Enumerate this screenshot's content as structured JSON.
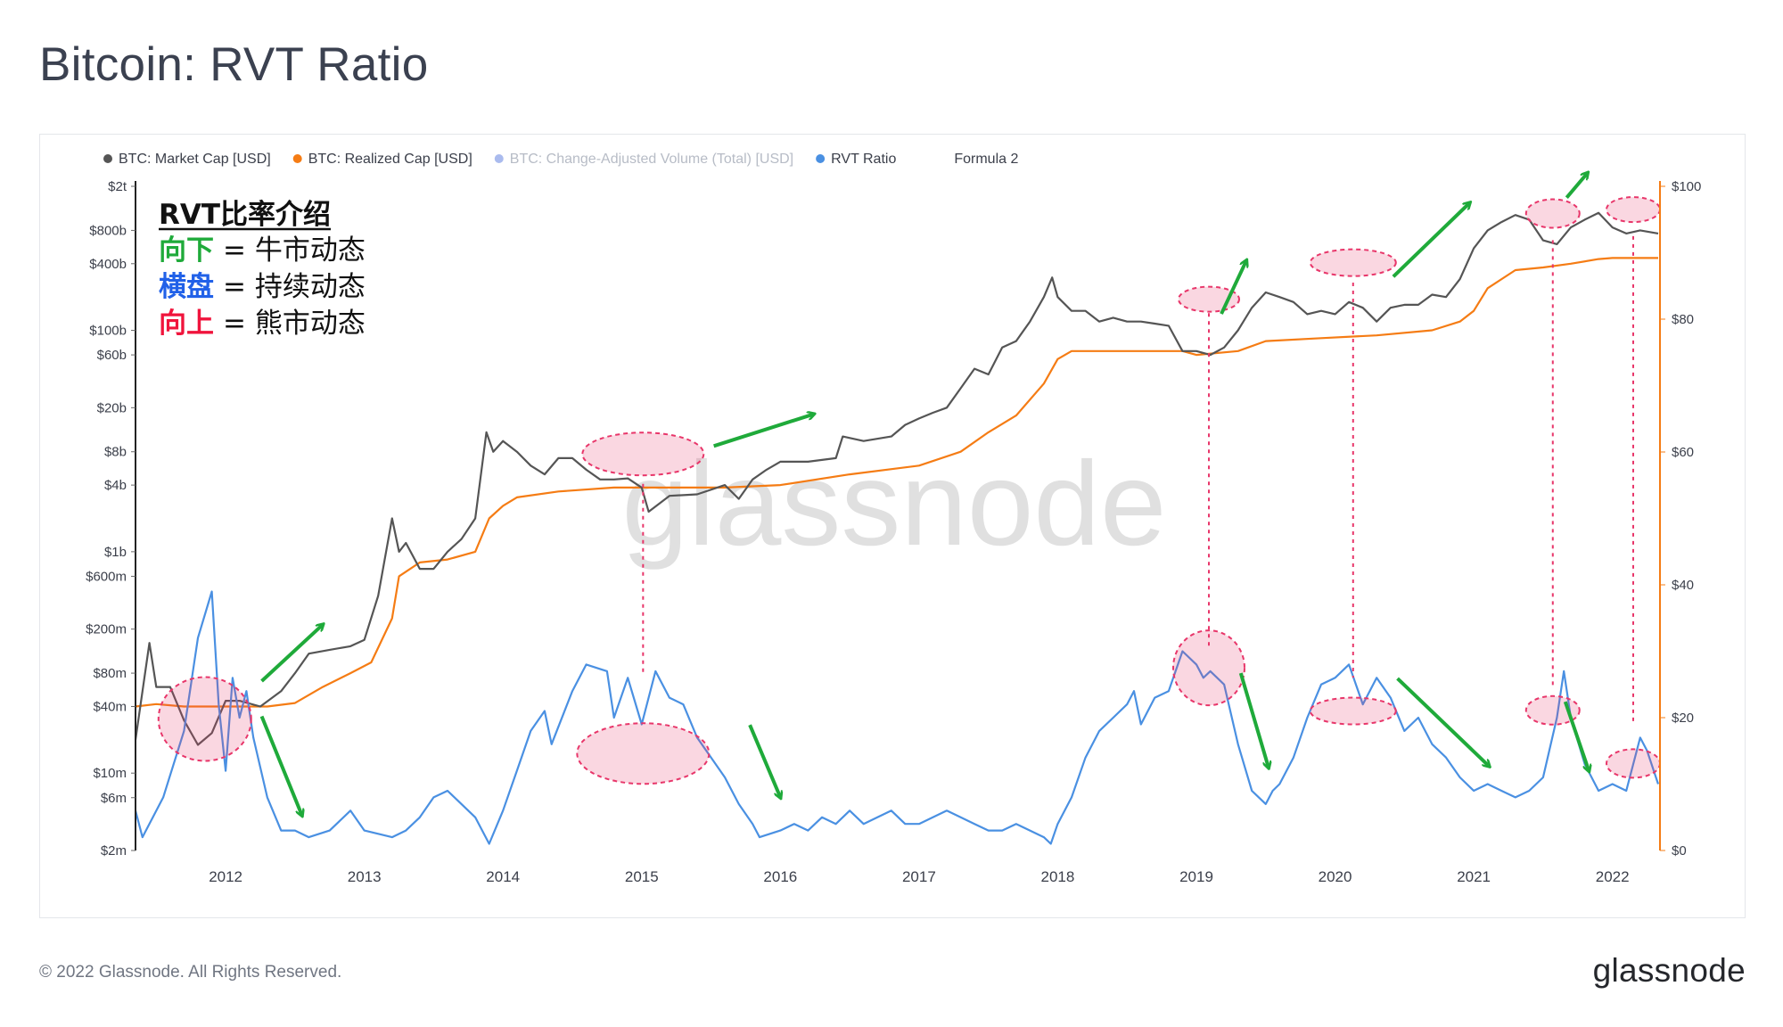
{
  "title": "Bitcoin: RVT Ratio",
  "footer": {
    "copyright": "© 2022 Glassnode. All Rights Reserved.",
    "logo": "glassnode"
  },
  "watermark": "glassnode",
  "legend": [
    {
      "label": "BTC: Market Cap [USD]",
      "color": "#555555",
      "active": true
    },
    {
      "label": "BTC: Realized Cap [USD]",
      "color": "#f57c14",
      "active": true
    },
    {
      "label": "BTC: Change-Adjusted Volume (Total) [USD]",
      "color": "#5577dd",
      "active": false
    },
    {
      "label": "RVT Ratio",
      "color": "#4a90e2",
      "active": true
    },
    {
      "label": "Formula 2",
      "color": null,
      "active": true
    }
  ],
  "annotation_box": {
    "title": "RVT比率介绍",
    "rows": [
      {
        "term": "向下",
        "color": "#1faa3a",
        "meaning": "= 牛市动态"
      },
      {
        "term": "横盘",
        "color": "#2161e8",
        "meaning": "= 持续动态"
      },
      {
        "term": "向上",
        "color": "#f0143c",
        "meaning": "= 熊市动态"
      }
    ]
  },
  "chart_data": {
    "type": "line",
    "x_axis": {
      "ticks": [
        "2012",
        "2013",
        "2014",
        "2015",
        "2016",
        "2017",
        "2018",
        "2019",
        "2020",
        "2021",
        "2022"
      ],
      "range": [
        2011.35,
        2022.33
      ]
    },
    "y_left": {
      "scale": "log",
      "unit": "USD",
      "ticks": [
        "$2t",
        "$800b",
        "$400b",
        "$100b",
        "$60b",
        "$20b",
        "$8b",
        "$4b",
        "$1b",
        "$600m",
        "$200m",
        "$80m",
        "$40m",
        "$10m",
        "$6m",
        "$2m"
      ]
    },
    "y_right": {
      "scale": "linear",
      "range": [
        0,
        100
      ],
      "ticks": [
        "$100",
        "$80",
        "$60",
        "$40",
        "$20",
        "$0"
      ],
      "axis_color": "#f57c14"
    },
    "series": [
      {
        "name": "BTC: Market Cap [USD]",
        "axis": "left",
        "color": "#555555",
        "x": [
          2011.35,
          2011.45,
          2011.5,
          2011.6,
          2011.7,
          2011.8,
          2011.9,
          2012.0,
          2012.1,
          2012.25,
          2012.4,
          2012.5,
          2012.6,
          2012.75,
          2012.9,
          2013.0,
          2013.1,
          2013.2,
          2013.25,
          2013.3,
          2013.4,
          2013.5,
          2013.6,
          2013.7,
          2013.8,
          2013.88,
          2013.93,
          2014.0,
          2014.1,
          2014.2,
          2014.3,
          2014.4,
          2014.5,
          2014.6,
          2014.7,
          2014.8,
          2014.9,
          2015.0,
          2015.05,
          2015.2,
          2015.4,
          2015.6,
          2015.7,
          2015.8,
          2015.9,
          2016.0,
          2016.2,
          2016.4,
          2016.45,
          2016.6,
          2016.8,
          2016.9,
          2017.0,
          2017.1,
          2017.2,
          2017.3,
          2017.4,
          2017.5,
          2017.6,
          2017.7,
          2017.8,
          2017.9,
          2017.96,
          2018.0,
          2018.1,
          2018.2,
          2018.3,
          2018.4,
          2018.5,
          2018.6,
          2018.7,
          2018.8,
          2018.9,
          2019.0,
          2019.1,
          2019.2,
          2019.3,
          2019.4,
          2019.5,
          2019.6,
          2019.7,
          2019.8,
          2019.9,
          2020.0,
          2020.1,
          2020.2,
          2020.3,
          2020.4,
          2020.5,
          2020.6,
          2020.7,
          2020.8,
          2020.9,
          2021.0,
          2021.1,
          2021.2,
          2021.3,
          2021.4,
          2021.5,
          2021.6,
          2021.7,
          2021.8,
          2021.9,
          2022.0,
          2022.1,
          2022.2,
          2022.33
        ],
        "y": [
          20000000.0,
          150000000.0,
          60000000.0,
          60000000.0,
          30000000.0,
          18000000.0,
          23000000.0,
          45000000.0,
          45000000.0,
          40000000.0,
          55000000.0,
          80000000.0,
          120000000.0,
          130000000.0,
          140000000.0,
          160000000.0,
          400000000.0,
          2000000000.0,
          1000000000.0,
          1200000000.0,
          700000000.0,
          700000000.0,
          1000000000.0,
          1300000000.0,
          2000000000.0,
          12000000000.0,
          8000000000.0,
          10000000000.0,
          8000000000.0,
          6000000000.0,
          5000000000.0,
          7000000000.0,
          7000000000.0,
          5500000000.0,
          4500000000.0,
          4500000000.0,
          4600000000.0,
          3800000000.0,
          2300000000.0,
          3200000000.0,
          3300000000.0,
          4000000000.0,
          3000000000.0,
          4500000000.0,
          5500000000.0,
          6500000000.0,
          6500000000.0,
          7000000000.0,
          11000000000.0,
          10000000000.0,
          11000000000.0,
          14000000000.0,
          16000000000.0,
          18000000000.0,
          20000000000.0,
          30000000000.0,
          45000000000.0,
          40000000000.0,
          70000000000.0,
          80000000000.0,
          120000000000.0,
          200000000000.0,
          300000000000.0,
          200000000000.0,
          150000000000.0,
          150000000000.0,
          120000000000.0,
          130000000000.0,
          120000000000.0,
          120000000000.0,
          115000000000.0,
          110000000000.0,
          65000000000.0,
          65000000000.0,
          60000000000.0,
          70000000000.0,
          100000000000.0,
          160000000000.0,
          220000000000.0,
          200000000000.0,
          180000000000.0,
          140000000000.0,
          150000000000.0,
          140000000000.0,
          180000000000.0,
          160000000000.0,
          120000000000.0,
          160000000000.0,
          170000000000.0,
          170000000000.0,
          210000000000.0,
          200000000000.0,
          290000000000.0,
          550000000000.0,
          800000000000.0,
          950000000000.0,
          1100000000000.0,
          1000000000000.0,
          650000000000.0,
          600000000000.0,
          850000000000.0,
          1000000000000.0,
          1150000000000.0,
          850000000000.0,
          750000000000.0,
          800000000000.0,
          750000000000.0
        ]
      },
      {
        "name": "BTC: Realized Cap [USD]",
        "axis": "left",
        "color": "#f57c14",
        "x": [
          2011.35,
          2011.5,
          2011.7,
          2011.9,
          2012.1,
          2012.3,
          2012.5,
          2012.7,
          2012.9,
          2013.05,
          2013.2,
          2013.25,
          2013.4,
          2013.6,
          2013.8,
          2013.9,
          2014.0,
          2014.1,
          2014.4,
          2014.8,
          2015.2,
          2015.6,
          2016.0,
          2016.5,
          2017.0,
          2017.3,
          2017.5,
          2017.7,
          2017.9,
          2018.0,
          2018.1,
          2018.5,
          2018.9,
          2019.0,
          2019.3,
          2019.5,
          2019.9,
          2020.3,
          2020.7,
          2020.9,
          2021.0,
          2021.1,
          2021.3,
          2021.5,
          2021.7,
          2021.9,
          2022.0,
          2022.33
        ],
        "y": [
          40000000.0,
          42000000.0,
          40000000.0,
          40000000.0,
          40000000.0,
          40000000.0,
          43000000.0,
          60000000.0,
          80000000.0,
          100000000.0,
          250000000.0,
          600000000.0,
          800000000.0,
          850000000.0,
          1000000000.0,
          2000000000.0,
          2600000000.0,
          3100000000.0,
          3500000000.0,
          3800000000.0,
          3800000000.0,
          3800000000.0,
          4000000000.0,
          5000000000.0,
          6000000000.0,
          8000000000.0,
          12000000000.0,
          17000000000.0,
          33000000000.0,
          55000000000.0,
          65000000000.0,
          65000000000.0,
          65000000000.0,
          60000000000.0,
          65000000000.0,
          80000000000.0,
          85000000000.0,
          90000000000.0,
          100000000000.0,
          120000000000.0,
          150000000000.0,
          240000000000.0,
          350000000000.0,
          370000000000.0,
          400000000000.0,
          440000000000.0,
          450000000000.0,
          450000000000.0
        ]
      },
      {
        "name": "RVT Ratio",
        "axis": "right",
        "color": "#4a90e2",
        "x": [
          2011.35,
          2011.4,
          2011.55,
          2011.7,
          2011.8,
          2011.9,
          2011.95,
          2012.0,
          2012.05,
          2012.1,
          2012.15,
          2012.2,
          2012.3,
          2012.4,
          2012.5,
          2012.6,
          2012.75,
          2012.9,
          2013.0,
          2013.2,
          2013.3,
          2013.4,
          2013.5,
          2013.6,
          2013.7,
          2013.8,
          2013.9,
          2014.0,
          2014.1,
          2014.2,
          2014.3,
          2014.35,
          2014.5,
          2014.6,
          2014.75,
          2014.8,
          2014.9,
          2015.0,
          2015.1,
          2015.2,
          2015.3,
          2015.4,
          2015.5,
          2015.6,
          2015.7,
          2015.8,
          2015.85,
          2016.0,
          2016.1,
          2016.2,
          2016.3,
          2016.4,
          2016.5,
          2016.6,
          2016.7,
          2016.8,
          2016.9,
          2017.0,
          2017.1,
          2017.2,
          2017.3,
          2017.4,
          2017.5,
          2017.6,
          2017.7,
          2017.8,
          2017.9,
          2017.95,
          2018.0,
          2018.1,
          2018.2,
          2018.3,
          2018.4,
          2018.5,
          2018.55,
          2018.6,
          2018.7,
          2018.8,
          2018.9,
          2019.0,
          2019.05,
          2019.1,
          2019.2,
          2019.3,
          2019.4,
          2019.5,
          2019.55,
          2019.6,
          2019.7,
          2019.8,
          2019.9,
          2020.0,
          2020.1,
          2020.2,
          2020.3,
          2020.4,
          2020.5,
          2020.6,
          2020.7,
          2020.8,
          2020.9,
          2021.0,
          2021.1,
          2021.2,
          2021.3,
          2021.4,
          2021.5,
          2021.6,
          2021.65,
          2021.7,
          2021.8,
          2021.9,
          2022.0,
          2022.1,
          2022.2,
          2022.25,
          2022.33
        ],
        "y": [
          6,
          2,
          8,
          18,
          32,
          39,
          22,
          12,
          26,
          20,
          24,
          17,
          8,
          3,
          3,
          2,
          3,
          6,
          3,
          2,
          3,
          5,
          8,
          9,
          7,
          5,
          1,
          6,
          12,
          18,
          21,
          16,
          24,
          28,
          27,
          20,
          26,
          19,
          27,
          23,
          22,
          17,
          14,
          11,
          7,
          4,
          2,
          3,
          4,
          3,
          5,
          4,
          6,
          4,
          5,
          6,
          4,
          4,
          5,
          6,
          5,
          4,
          3,
          3,
          4,
          3,
          2,
          1,
          4,
          8,
          14,
          18,
          20,
          22,
          24,
          19,
          23,
          24,
          30,
          28,
          26,
          27,
          25,
          16,
          9,
          7,
          9,
          10,
          14,
          20,
          25,
          26,
          28,
          22,
          26,
          23,
          18,
          20,
          16,
          14,
          11,
          9,
          10,
          9,
          8,
          9,
          11,
          20,
          27,
          20,
          13,
          9,
          10,
          9,
          17,
          15,
          10
        ]
      }
    ],
    "annotations": {
      "arrows_down_color": "#1faa3a",
      "highlight_color": "#e8366a"
    }
  }
}
